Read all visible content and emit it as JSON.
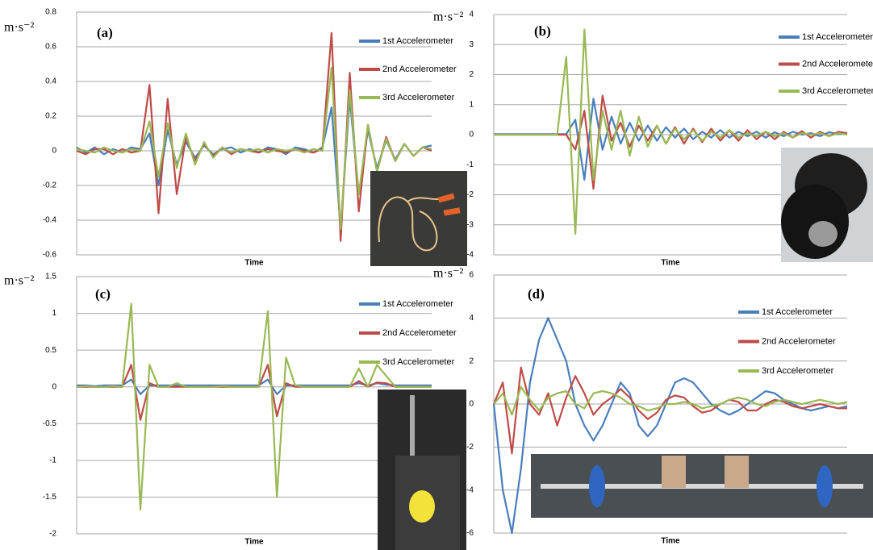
{
  "chart_data": [
    {
      "type": "line",
      "annotation": "(a)",
      "ylabel": "m·s⁻²",
      "xlabel": "Time",
      "ylim": [
        -0.6,
        0.8
      ],
      "yticks": [
        -0.6,
        -0.4,
        -0.2,
        0,
        0.2,
        0.4,
        0.6,
        0.8
      ],
      "grid": true,
      "series": [
        {
          "name": "1st Accelerometer",
          "color": "#4a7ebb",
          "values": [
            0.02,
            -0.01,
            0.02,
            -0.02,
            0.01,
            -0.01,
            0.02,
            0.01,
            0.1,
            -0.2,
            0.12,
            -0.08,
            0.05,
            -0.04,
            0.03,
            -0.02,
            0.01,
            0.02,
            -0.01,
            0.01,
            -0.01,
            0.02,
            0.01,
            -0.02,
            0.02,
            0.01,
            -0.01,
            0.02,
            0.25,
            -0.45,
            0.3,
            -0.25,
            0.12,
            -0.1,
            0.06,
            -0.05,
            0.04,
            -0.03,
            0.02,
            0.03
          ]
        },
        {
          "name": "2nd Accelerometer",
          "color": "#be4b48",
          "values": [
            0,
            -0.02,
            0.01,
            0.01,
            -0.02,
            0.01,
            -0.01,
            0,
            0.38,
            -0.36,
            0.3,
            -0.25,
            0.08,
            -0.06,
            0.04,
            -0.03,
            0.02,
            -0.02,
            0.01,
            0,
            -0.01,
            0.01,
            0,
            -0.01,
            0.01,
            0,
            -0.01,
            0.01,
            0.68,
            -0.52,
            0.45,
            -0.35,
            0.15,
            -0.12,
            0.08,
            -0.06,
            0.04,
            -0.03,
            0.02,
            0
          ]
        },
        {
          "name": "3rd Accelerometer",
          "color": "#98b954",
          "values": [
            0.01,
            0,
            -0.01,
            0.02,
            0,
            -0.01,
            0.01,
            0,
            0.17,
            -0.15,
            0.16,
            -0.1,
            0.1,
            -0.08,
            0.05,
            -0.04,
            0.02,
            -0.01,
            0.01,
            0,
            0.01,
            -0.01,
            0.01,
            0,
            0.01,
            -0.01,
            0.01,
            0,
            0.48,
            -0.45,
            0.35,
            -0.25,
            0.15,
            -0.12,
            0.07,
            -0.06,
            0.04,
            -0.03,
            0.02,
            0.01
          ]
        }
      ]
    },
    {
      "type": "line",
      "annotation": "(b)",
      "ylabel": "m·s⁻²",
      "xlabel": "Time",
      "ylim": [
        -4,
        4
      ],
      "yticks": [
        -4,
        -3,
        -2,
        -1,
        0,
        1,
        2,
        3,
        4
      ],
      "grid": true,
      "series": [
        {
          "name": "1st Accelerometer",
          "color": "#4a7ebb",
          "values": [
            0.02,
            0.02,
            0.02,
            0.02,
            0.02,
            0.02,
            0.02,
            0.02,
            0.02,
            0.5,
            -1.5,
            1.2,
            -0.5,
            0.6,
            -0.3,
            0.4,
            -0.2,
            0.3,
            -0.2,
            0.25,
            -0.1,
            0.2,
            -0.15,
            0.1,
            -0.1,
            0.15,
            -0.1,
            0.1,
            -0.05,
            0.1,
            -0.1,
            0.08,
            -0.05,
            0.1,
            0,
            0.05,
            -0.05,
            0.08,
            0.02,
            0.05
          ]
        },
        {
          "name": "2nd Accelerometer",
          "color": "#be4b48",
          "values": [
            0,
            0,
            0,
            0,
            0,
            0,
            0,
            0,
            0,
            -0.5,
            0.8,
            -1.8,
            1.3,
            -0.2,
            0.4,
            -0.4,
            0.3,
            -0.2,
            0.3,
            -0.3,
            0.25,
            -0.3,
            0.2,
            -0.25,
            0.2,
            -0.2,
            0.15,
            -0.2,
            0.15,
            -0.15,
            0.1,
            -0.15,
            0.1,
            -0.1,
            0.12,
            -0.1,
            0.1,
            -0.05,
            0.1,
            0.05
          ]
        },
        {
          "name": "3rd Accelerometer",
          "color": "#98b954",
          "values": [
            0,
            0,
            0,
            0,
            0,
            0,
            0,
            0,
            2.6,
            -3.3,
            3.5,
            -1.5,
            0.8,
            -0.5,
            0.8,
            -0.7,
            0.6,
            -0.4,
            0.3,
            -0.3,
            0.2,
            -0.15,
            0.15,
            -0.2,
            0.1,
            -0.1,
            0.15,
            -0.1,
            0.05,
            -0.05,
            0.1,
            -0.05,
            0.05,
            -0.1,
            0.05,
            0,
            0.05,
            -0.05,
            0.05,
            0
          ]
        }
      ]
    },
    {
      "type": "line",
      "annotation": "(c)",
      "ylabel": "m·s⁻²",
      "xlabel": "Time",
      "ylim": [
        -2,
        1.5
      ],
      "yticks": [
        -2,
        -1.5,
        -1,
        -0.5,
        0,
        0.5,
        1,
        1.5
      ],
      "grid": true,
      "series": [
        {
          "name": "1st Accelerometer",
          "color": "#4a7ebb",
          "values": [
            0.02,
            0.02,
            0.01,
            0.02,
            0.02,
            0.02,
            0.1,
            -0.1,
            0.02,
            0.02,
            0.02,
            0.02,
            0.02,
            0.02,
            0.02,
            0.02,
            0.02,
            0.02,
            0.02,
            0.02,
            0.02,
            0.1,
            -0.1,
            0.02,
            0.02,
            0.02,
            0.02,
            0.02,
            0.02,
            0.02,
            0.02,
            0.05,
            0.02,
            0.05,
            0.03,
            0.02,
            0.02,
            0.02,
            0.02,
            0.02
          ]
        },
        {
          "name": "2nd Accelerometer",
          "color": "#be4b48",
          "values": [
            0,
            0,
            0,
            0,
            0,
            0,
            0.3,
            -0.45,
            0.05,
            0,
            0,
            0,
            0,
            0,
            0,
            0,
            0,
            0,
            0,
            0,
            0,
            0.3,
            -0.4,
            0.05,
            0,
            0,
            0,
            0,
            0,
            0,
            0,
            0.08,
            0,
            0.06,
            0.05,
            0,
            0,
            0,
            0,
            0
          ]
        },
        {
          "name": "3rd Accelerometer",
          "color": "#98b954",
          "values": [
            0,
            0.01,
            0,
            0,
            0.01,
            0,
            1.13,
            -1.67,
            0.3,
            0,
            0,
            0.05,
            0,
            0,
            0,
            0,
            0.01,
            0,
            0,
            0,
            0,
            1.03,
            -1.5,
            0.4,
            0.02,
            0,
            0,
            0,
            0,
            0,
            0,
            0.25,
            0,
            0.3,
            0.15,
            0,
            0,
            0,
            0,
            0
          ]
        }
      ]
    },
    {
      "type": "line",
      "annotation": "(d)",
      "ylabel": "m·s⁻²",
      "xlabel": "Time",
      "ylim": [
        -6,
        6
      ],
      "yticks": [
        -6,
        -4,
        -2,
        0,
        2,
        4,
        6
      ],
      "grid": true,
      "series": [
        {
          "name": "1st Accelerometer",
          "color": "#4a7ebb",
          "values": [
            0,
            -4,
            -6,
            -3,
            1,
            3,
            4,
            3,
            2,
            0,
            -1,
            -1.7,
            -1,
            0,
            1,
            0.5,
            -1,
            -1.5,
            -1,
            0,
            1,
            1.2,
            1,
            0.5,
            0,
            -0.3,
            -0.5,
            -0.3,
            0,
            0.3,
            0.6,
            0.5,
            0.2,
            0,
            -0.2,
            -0.3,
            -0.2,
            -0.1,
            -0.2,
            -0.1
          ]
        },
        {
          "name": "2nd Accelerometer",
          "color": "#be4b48",
          "values": [
            0,
            1,
            -2.3,
            1.7,
            0,
            -0.5,
            0.5,
            -1,
            0.3,
            1.3,
            0.5,
            -0.5,
            0,
            0.3,
            0.7,
            0.3,
            -0.3,
            -0.7,
            -0.4,
            0.2,
            0.4,
            0.3,
            -0.1,
            -0.4,
            -0.3,
            0,
            0.2,
            0.1,
            -0.3,
            -0.3,
            0,
            0.2,
            0.1,
            -0.1,
            -0.2,
            -0.1,
            0,
            -0.1,
            -0.2,
            -0.2
          ]
        },
        {
          "name": "3rd Accelerometer",
          "color": "#98b954",
          "values": [
            0,
            0.5,
            -0.5,
            0.8,
            0.2,
            -0.3,
            0.3,
            0.5,
            0.6,
            0,
            -0.2,
            0.5,
            0.6,
            0.5,
            0.3,
            0,
            -0.1,
            -0.3,
            -0.2,
            0,
            0,
            0.1,
            0,
            -0.2,
            -0.1,
            0,
            0.2,
            0.3,
            0.2,
            0,
            -0.1,
            0.1,
            0.2,
            0.1,
            0,
            0.1,
            0.2,
            0.1,
            0,
            0.1
          ]
        }
      ]
    }
  ]
}
